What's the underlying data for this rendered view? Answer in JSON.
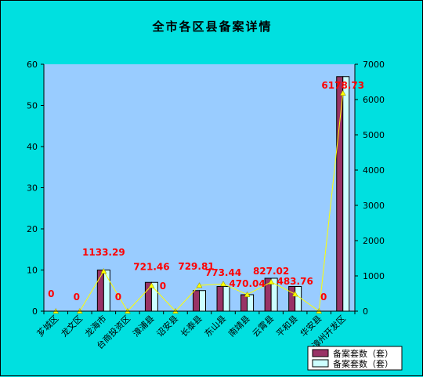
{
  "chart_data": {
    "type": "bar",
    "title": "全市各区县备案详情",
    "categories": [
      "芗城区",
      "龙文区",
      "龙海市",
      "台商投资区",
      "漳浦县",
      "诏安县",
      "长泰县",
      "东山县",
      "南靖县",
      "云霄县",
      "平和县",
      "华安县",
      "漳州开发区"
    ],
    "ylim_left": [
      0,
      60
    ],
    "yticks_left": [
      0,
      10,
      20,
      30,
      40,
      50,
      60
    ],
    "ylim_right": [
      0,
      7000
    ],
    "yticks_right": [
      0,
      1000,
      2000,
      3000,
      4000,
      5000,
      6000,
      7000
    ],
    "series": [
      {
        "name": "备案套数（套）",
        "axis": "left",
        "kind": "bar",
        "color": "#993366",
        "values": [
          0,
          0,
          10,
          0,
          7,
          0,
          5,
          6,
          4,
          8,
          6,
          0,
          57
        ]
      },
      {
        "name": "备案套数（套）",
        "axis": "left",
        "kind": "bar",
        "color": "#ccffff",
        "values": [
          0,
          0,
          10,
          0,
          7,
          0,
          5,
          6,
          4,
          8,
          6,
          0,
          57
        ]
      },
      {
        "axis": "right",
        "kind": "line",
        "color": "#ffff00",
        "values": [
          0,
          0,
          1133.29,
          0,
          721.46,
          0,
          729.81,
          773.44,
          470.04,
          827.02,
          483.76,
          0,
          6178.73
        ],
        "labels": [
          "0",
          "0",
          "1133.29",
          "0",
          "721.46",
          "0",
          "729.81",
          "773.44",
          "470.04",
          "827.02",
          "483.76",
          "0",
          "6178.73"
        ]
      }
    ],
    "grid": false,
    "legend_position": "bottom-right"
  }
}
